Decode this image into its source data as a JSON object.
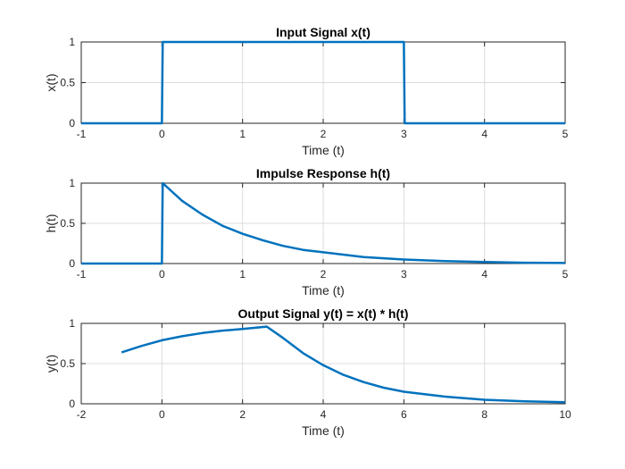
{
  "chart_data": [
    {
      "type": "line",
      "title": "Input Signal x(t)",
      "xlabel": "Time (t)",
      "ylabel": "x(t)",
      "xlim": [
        -1,
        5
      ],
      "ylim": [
        0,
        1
      ],
      "xticks": [
        "-1",
        "0",
        "1",
        "2",
        "3",
        "4",
        "5"
      ],
      "yticks": [
        "0",
        "0.5",
        "1"
      ],
      "grid": true,
      "color": "#0072BD",
      "x": [
        -1,
        0,
        0.01,
        3,
        3.01,
        5
      ],
      "y": [
        0,
        0,
        1,
        1,
        0,
        0
      ]
    },
    {
      "type": "line",
      "title": "Impulse Response h(t)",
      "xlabel": "Time (t)",
      "ylabel": "h(t)",
      "xlim": [
        -1,
        5
      ],
      "ylim": [
        0,
        1
      ],
      "xticks": [
        "-1",
        "0",
        "1",
        "2",
        "3",
        "4",
        "5"
      ],
      "yticks": [
        "0",
        "0.5",
        "1"
      ],
      "grid": true,
      "color": "#0072BD",
      "x": [
        -1,
        0,
        0.01,
        0.25,
        0.5,
        0.75,
        1,
        1.25,
        1.5,
        1.75,
        2,
        2.5,
        3,
        3.5,
        4,
        4.5,
        5
      ],
      "y": [
        0,
        0,
        1,
        0.78,
        0.61,
        0.47,
        0.37,
        0.29,
        0.22,
        0.17,
        0.14,
        0.08,
        0.05,
        0.03,
        0.02,
        0.01,
        0.007
      ]
    },
    {
      "type": "line",
      "title": "Output Signal y(t) = x(t) * h(t)",
      "xlabel": "Time (t)",
      "ylabel": "y(t)",
      "xlim": [
        -2,
        10
      ],
      "ylim": [
        0,
        1
      ],
      "xticks": [
        "-2",
        "0",
        "2",
        "4",
        "6",
        "8",
        "10"
      ],
      "yticks": [
        "0",
        "0.5",
        "1"
      ],
      "grid": true,
      "color": "#0072BD",
      "x": [
        -1,
        -0.5,
        0,
        0.5,
        1,
        1.5,
        2,
        2.6,
        3,
        3.5,
        4,
        4.5,
        5,
        5.5,
        6,
        7,
        8,
        9,
        10
      ],
      "y": [
        0.64,
        0.72,
        0.79,
        0.84,
        0.88,
        0.91,
        0.93,
        0.96,
        0.82,
        0.63,
        0.48,
        0.36,
        0.27,
        0.2,
        0.15,
        0.09,
        0.05,
        0.03,
        0.02
      ]
    }
  ]
}
